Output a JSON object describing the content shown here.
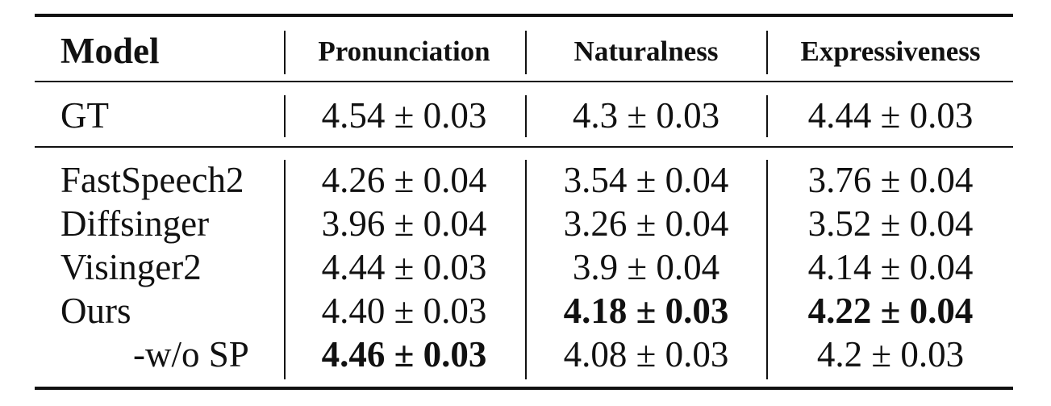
{
  "table": {
    "headers": {
      "model": "Model",
      "pronunciation": "Pronunciation",
      "naturalness": "Naturalness",
      "expressiveness": "Expressiveness"
    },
    "gt_row": {
      "model": "GT",
      "pronunciation": "4.54 ± 0.03",
      "naturalness": "4.3 ± 0.03",
      "expressiveness": "4.44 ± 0.03"
    },
    "rows": [
      {
        "model": "FastSpeech2",
        "pronunciation": "4.26 ± 0.04",
        "naturalness": "3.54 ± 0.04",
        "expressiveness": "3.76 ± 0.04"
      },
      {
        "model": "Diffsinger",
        "pronunciation": "3.96 ± 0.04",
        "naturalness": "3.26 ± 0.04",
        "expressiveness": "3.52 ± 0.04"
      },
      {
        "model": "Visinger2",
        "pronunciation": "4.44 ± 0.03",
        "naturalness": "3.9 ± 0.04",
        "expressiveness": "4.14 ± 0.04"
      },
      {
        "model": "Ours",
        "pronunciation": "4.40 ± 0.03",
        "naturalness": "4.18 ± 0.03",
        "expressiveness": "4.22 ± 0.04"
      },
      {
        "model": "-w/o SP",
        "pronunciation": "4.46 ± 0.03",
        "naturalness": "4.08 ± 0.03",
        "expressiveness": "4.2 ± 0.03"
      }
    ]
  }
}
